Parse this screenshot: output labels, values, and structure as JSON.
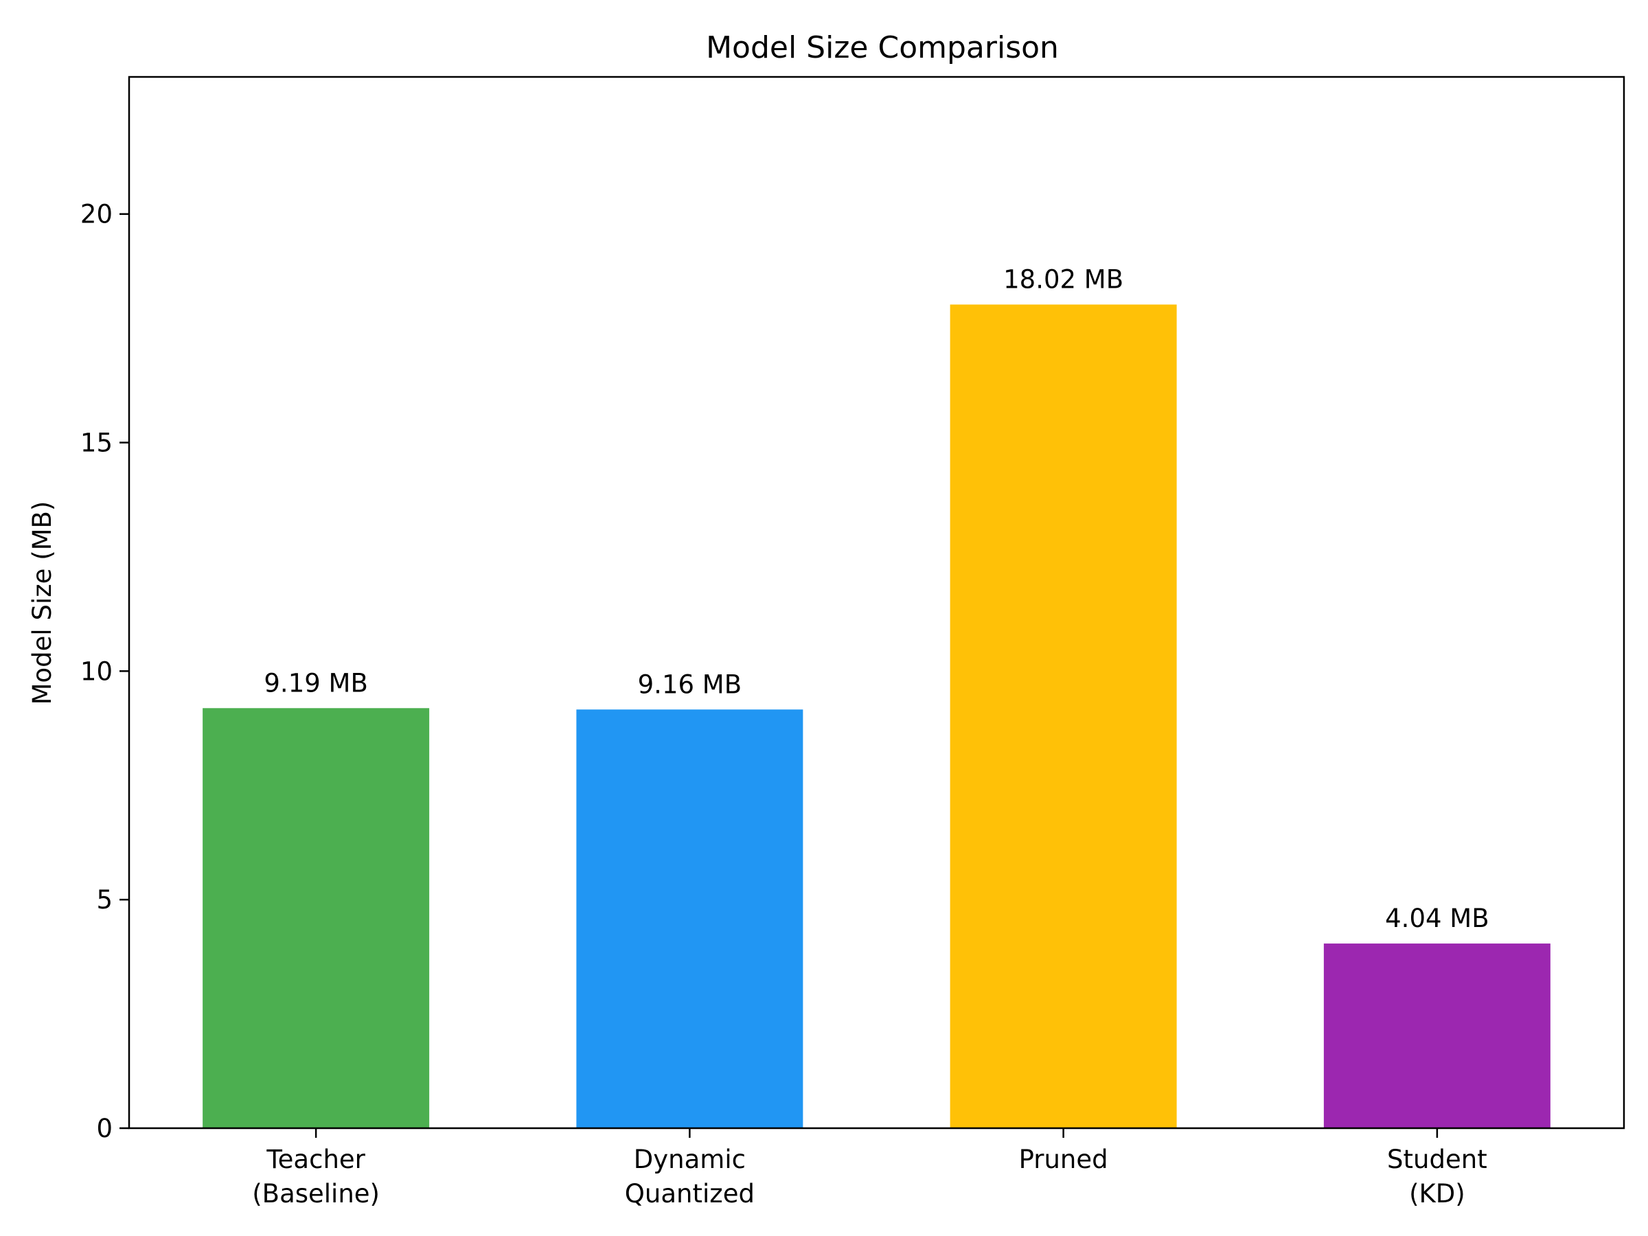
{
  "chart_data": {
    "type": "bar",
    "title": "Model Size Comparison",
    "xlabel": "",
    "ylabel": "Model Size (MB)",
    "ylim": [
      0,
      23
    ],
    "yticks": [
      0,
      5,
      10,
      15,
      20
    ],
    "grid": false,
    "categories": [
      [
        "Teacher",
        "(Baseline)"
      ],
      [
        "Dynamic",
        "Quantized"
      ],
      [
        "Pruned"
      ],
      [
        "Student",
        "(KD)"
      ]
    ],
    "values": [
      9.19,
      9.16,
      18.02,
      4.04
    ],
    "value_labels": [
      "9.19 MB",
      "9.16 MB",
      "18.02 MB",
      "4.04 MB"
    ],
    "colors": [
      "#4caf50",
      "#2196f3",
      "#ffc107",
      "#9c27b0"
    ]
  }
}
